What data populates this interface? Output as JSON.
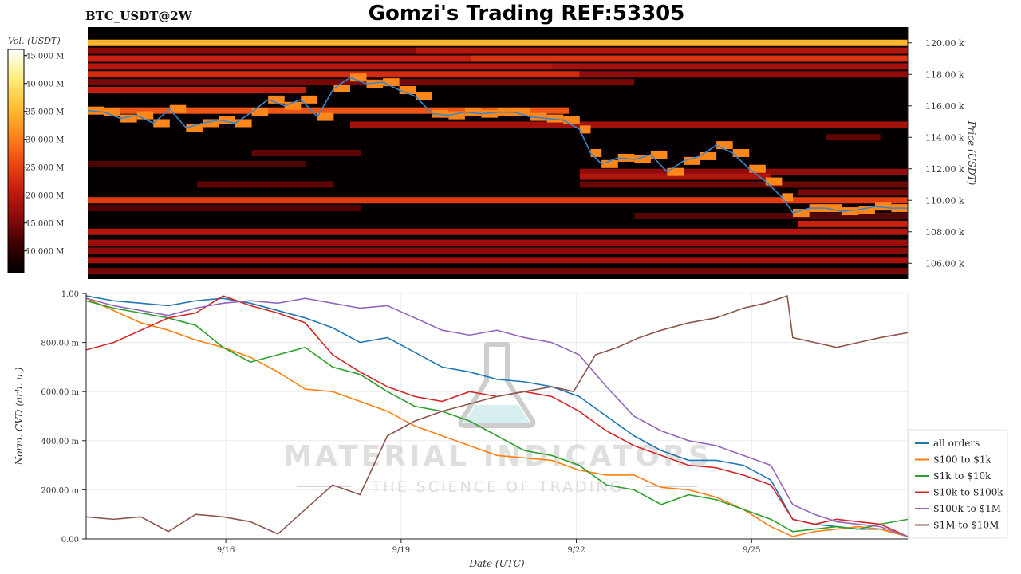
{
  "header": {
    "symbol": "BTC_USDT@2W",
    "title": "Gomzi's Trading REF:53305"
  },
  "watermark": {
    "brand": "MATERIAL INDICATORS",
    "tagline": "THE SCIENCE OF TRADING",
    "icon": "flask-icon"
  },
  "colorbar": {
    "label": "Vol. (USDT)",
    "ticks": [
      "10.000 M",
      "15.000 M",
      "20.000 M",
      "25.000 M",
      "30.000 M",
      "35.000 M",
      "40.000 M",
      "45.000 M"
    ],
    "colors": [
      "#000000",
      "#3a0000",
      "#8b0a0a",
      "#c81e0f",
      "#ee4b12",
      "#ff8a1c",
      "#ffc235",
      "#ffee80",
      "#ffffff"
    ]
  },
  "chart_data": [
    {
      "type": "heatmap",
      "name": "order-book-heatmap",
      "ylabel": "Price (USDT)",
      "ylim": [
        105,
        121
      ],
      "yticks": [
        106,
        108,
        110,
        112,
        114,
        116,
        118,
        120
      ],
      "ytick_labels": [
        "106.00 k",
        "108.00 k",
        "110.00 k",
        "112.00 k",
        "114.00 k",
        "116.00 k",
        "118.00 k",
        "120.00 k"
      ],
      "xlim": [
        0,
        15
      ],
      "price_series": {
        "color": "#3a86c8",
        "x": [
          0,
          0.3,
          0.6,
          0.9,
          1.2,
          1.5,
          1.8,
          2.1,
          2.4,
          2.7,
          3.0,
          3.3,
          3.6,
          3.9,
          4.2,
          4.5,
          4.8,
          5.1,
          5.4,
          5.7,
          6.0,
          6.3,
          6.6,
          6.9,
          7.2,
          7.5,
          7.8,
          8.1,
          8.4,
          8.7,
          9.0,
          9.2,
          9.4,
          9.7,
          10.0,
          10.3,
          10.6,
          10.9,
          11.2,
          11.5,
          11.8,
          12.1,
          12.4,
          12.7,
          12.9,
          13.2,
          13.5,
          13.8,
          14.1,
          14.4,
          14.7,
          15.0
        ],
        "y": [
          115.7,
          115.6,
          115.2,
          115.4,
          114.9,
          115.8,
          114.6,
          114.9,
          115.1,
          114.9,
          115.6,
          116.4,
          116.0,
          116.4,
          115.3,
          117.1,
          117.8,
          117.4,
          117.5,
          117.0,
          116.6,
          115.5,
          115.4,
          115.6,
          115.5,
          115.6,
          115.6,
          115.3,
          115.2,
          115.1,
          114.5,
          113.0,
          112.3,
          112.7,
          112.6,
          112.9,
          111.8,
          112.5,
          112.8,
          113.5,
          113.0,
          112.0,
          111.2,
          110.2,
          109.2,
          109.5,
          109.5,
          109.3,
          109.4,
          109.6,
          109.5,
          109.5
        ]
      },
      "bands": [
        {
          "price": 120.0,
          "segments": [
            [
              0,
              15,
              0.72
            ]
          ]
        },
        {
          "price": 119.5,
          "segments": [
            [
              0,
              6,
              0.25
            ],
            [
              6,
              15,
              0.33
            ]
          ]
        },
        {
          "price": 119.0,
          "segments": [
            [
              0,
              7,
              0.38
            ],
            [
              7,
              15,
              0.44
            ]
          ]
        },
        {
          "price": 118.5,
          "segments": [
            [
              0,
              8.5,
              0.34
            ],
            [
              8.5,
              15,
              0.3
            ]
          ]
        },
        {
          "price": 118.0,
          "segments": [
            [
              0,
              9,
              0.41
            ],
            [
              9,
              15,
              0.26
            ]
          ]
        },
        {
          "price": 117.5,
          "segments": [
            [
              0,
              10,
              0.22
            ]
          ]
        },
        {
          "price": 117.0,
          "segments": [
            [
              0,
              4,
              0.36
            ]
          ]
        },
        {
          "price": 115.7,
          "segments": [
            [
              0,
              8.8,
              0.52
            ]
          ]
        },
        {
          "price": 114.8,
          "segments": [
            [
              4.8,
              15,
              0.3
            ]
          ]
        },
        {
          "price": 114.0,
          "segments": [
            [
              13.5,
              14.5,
              0.18
            ]
          ]
        },
        {
          "price": 113.0,
          "segments": [
            [
              3,
              5,
              0.18
            ]
          ]
        },
        {
          "price": 112.3,
          "segments": [
            [
              0,
              4,
              0.15
            ]
          ]
        },
        {
          "price": 111.8,
          "segments": [
            [
              9,
              15,
              0.26
            ]
          ]
        },
        {
          "price": 111.5,
          "segments": [
            [
              9,
              12.5,
              0.32
            ]
          ]
        },
        {
          "price": 111.0,
          "segments": [
            [
              2,
              4.5,
              0.18
            ],
            [
              9,
              15,
              0.2
            ]
          ]
        },
        {
          "price": 110.5,
          "segments": [
            [
              13,
              15,
              0.22
            ]
          ]
        },
        {
          "price": 110.0,
          "segments": [
            [
              0,
              15,
              0.46
            ]
          ]
        },
        {
          "price": 109.5,
          "segments": [
            [
              0,
              5,
              0.16
            ]
          ]
        },
        {
          "price": 109.0,
          "segments": [
            [
              10,
              15,
              0.17
            ]
          ]
        },
        {
          "price": 108.5,
          "segments": [
            [
              13,
              15,
              0.38
            ]
          ]
        },
        {
          "price": 108.0,
          "segments": [
            [
              0,
              15,
              0.33
            ]
          ]
        },
        {
          "price": 107.3,
          "segments": [
            [
              0,
              15,
              0.28
            ]
          ]
        },
        {
          "price": 106.8,
          "segments": [
            [
              0,
              15,
              0.25
            ]
          ]
        },
        {
          "price": 106.2,
          "segments": [
            [
              0,
              15,
              0.3
            ]
          ]
        },
        {
          "price": 105.5,
          "segments": [
            [
              0,
              15,
              0.22
            ]
          ]
        }
      ]
    },
    {
      "type": "line",
      "name": "normalized-cvd",
      "xlabel": "Date (UTC)",
      "ylabel": "Norm. CVD (arb. u.)",
      "xlim": [
        0,
        15
      ],
      "ylim": [
        0,
        1
      ],
      "xticks": [
        2.55,
        5.75,
        8.95,
        12.15
      ],
      "xtick_labels": [
        "9/16",
        "9/19",
        "9/22",
        "9/25"
      ],
      "yticks": [
        0,
        0.2,
        0.4,
        0.6,
        0.8,
        1.0
      ],
      "ytick_labels": [
        "0.00",
        "200.00 m",
        "400.00 m",
        "600.00 m",
        "800.00 m",
        "1.00"
      ],
      "legend_position": "lower-right",
      "series": [
        {
          "name": "all orders",
          "color": "#1f77b4",
          "x": [
            0,
            0.5,
            1.0,
            1.5,
            2.0,
            2.5,
            3.0,
            3.5,
            4.0,
            4.5,
            5.0,
            5.5,
            6.0,
            6.5,
            7.0,
            7.5,
            8.0,
            8.5,
            9.0,
            9.5,
            10.0,
            10.5,
            11.0,
            11.5,
            12.0,
            12.5,
            12.9,
            13.3,
            13.7,
            14.1,
            14.5,
            15.0
          ],
          "y": [
            0.99,
            0.97,
            0.96,
            0.95,
            0.97,
            0.98,
            0.96,
            0.93,
            0.9,
            0.86,
            0.8,
            0.82,
            0.76,
            0.7,
            0.68,
            0.65,
            0.64,
            0.62,
            0.58,
            0.5,
            0.42,
            0.36,
            0.32,
            0.32,
            0.3,
            0.24,
            0.08,
            0.06,
            0.05,
            0.04,
            0.04,
            0.01
          ]
        },
        {
          "name": "$100 to $1k",
          "color": "#ff7f0e",
          "x": [
            0,
            0.5,
            1.0,
            1.5,
            2.0,
            2.5,
            3.0,
            3.5,
            4.0,
            4.5,
            5.0,
            5.5,
            6.0,
            6.5,
            7.0,
            7.5,
            8.0,
            8.5,
            9.0,
            9.5,
            10.0,
            10.5,
            11.0,
            11.5,
            12.0,
            12.5,
            12.9,
            13.3,
            13.7,
            14.1,
            14.5,
            15.0
          ],
          "y": [
            0.98,
            0.93,
            0.88,
            0.85,
            0.81,
            0.78,
            0.74,
            0.68,
            0.61,
            0.6,
            0.56,
            0.52,
            0.46,
            0.42,
            0.38,
            0.34,
            0.33,
            0.32,
            0.28,
            0.26,
            0.26,
            0.21,
            0.2,
            0.17,
            0.12,
            0.05,
            0.01,
            0.03,
            0.04,
            0.05,
            0.04,
            0.01
          ]
        },
        {
          "name": "$1k to $10k",
          "color": "#2ca02c",
          "x": [
            0,
            0.5,
            1.0,
            1.5,
            2.0,
            2.5,
            3.0,
            3.5,
            4.0,
            4.5,
            5.0,
            5.5,
            6.0,
            6.5,
            7.0,
            7.5,
            8.0,
            8.5,
            9.0,
            9.5,
            10.0,
            10.5,
            11.0,
            11.5,
            12.0,
            12.5,
            12.9,
            13.3,
            13.7,
            14.1,
            14.5,
            15.0
          ],
          "y": [
            0.97,
            0.94,
            0.92,
            0.9,
            0.87,
            0.78,
            0.72,
            0.75,
            0.78,
            0.7,
            0.67,
            0.6,
            0.54,
            0.52,
            0.48,
            0.42,
            0.36,
            0.34,
            0.3,
            0.22,
            0.2,
            0.14,
            0.18,
            0.16,
            0.12,
            0.08,
            0.03,
            0.04,
            0.05,
            0.04,
            0.06,
            0.08
          ]
        },
        {
          "name": "$10k to $100k",
          "color": "#d62728",
          "x": [
            0,
            0.5,
            1.0,
            1.5,
            2.0,
            2.5,
            3.0,
            3.5,
            4.0,
            4.5,
            5.0,
            5.5,
            6.0,
            6.5,
            7.0,
            7.5,
            8.0,
            8.5,
            9.0,
            9.5,
            10.0,
            10.5,
            11.0,
            11.5,
            12.0,
            12.5,
            12.9,
            13.3,
            13.7,
            14.1,
            14.5,
            15.0
          ],
          "y": [
            0.77,
            0.8,
            0.85,
            0.9,
            0.92,
            0.99,
            0.95,
            0.92,
            0.88,
            0.75,
            0.68,
            0.62,
            0.58,
            0.56,
            0.6,
            0.58,
            0.6,
            0.58,
            0.52,
            0.44,
            0.38,
            0.34,
            0.3,
            0.29,
            0.26,
            0.22,
            0.08,
            0.06,
            0.08,
            0.07,
            0.06,
            0.01
          ]
        },
        {
          "name": "$100k to $1M",
          "color": "#9467bd",
          "x": [
            0,
            0.5,
            1.0,
            1.5,
            2.0,
            2.5,
            3.0,
            3.5,
            4.0,
            4.5,
            5.0,
            5.5,
            6.0,
            6.5,
            7.0,
            7.5,
            8.0,
            8.5,
            9.0,
            9.5,
            10.0,
            10.5,
            11.0,
            11.5,
            12.0,
            12.5,
            12.9,
            13.3,
            13.7,
            14.1,
            14.5,
            15.0
          ],
          "y": [
            0.98,
            0.95,
            0.93,
            0.91,
            0.94,
            0.96,
            0.97,
            0.96,
            0.98,
            0.96,
            0.94,
            0.95,
            0.9,
            0.85,
            0.83,
            0.85,
            0.82,
            0.8,
            0.75,
            0.62,
            0.5,
            0.44,
            0.4,
            0.38,
            0.34,
            0.3,
            0.14,
            0.1,
            0.07,
            0.06,
            0.05,
            0.01
          ]
        },
        {
          "name": "$1M to $10M",
          "color": "#8c564b",
          "x": [
            0,
            0.5,
            1.0,
            1.5,
            2.0,
            2.5,
            3.0,
            3.5,
            4.0,
            4.5,
            5.0,
            5.5,
            6.0,
            6.5,
            7.0,
            7.5,
            8.0,
            8.5,
            8.9,
            9.3,
            9.7,
            10.1,
            10.5,
            11.0,
            11.5,
            12.0,
            12.4,
            12.8,
            12.9,
            13.3,
            13.7,
            14.1,
            14.5,
            15.0
          ],
          "y": [
            0.09,
            0.08,
            0.09,
            0.03,
            0.1,
            0.09,
            0.07,
            0.02,
            0.12,
            0.22,
            0.18,
            0.42,
            0.48,
            0.52,
            0.55,
            0.58,
            0.6,
            0.62,
            0.6,
            0.75,
            0.78,
            0.82,
            0.85,
            0.88,
            0.9,
            0.94,
            0.96,
            0.99,
            0.82,
            0.8,
            0.78,
            0.8,
            0.82,
            0.84
          ]
        }
      ]
    }
  ]
}
